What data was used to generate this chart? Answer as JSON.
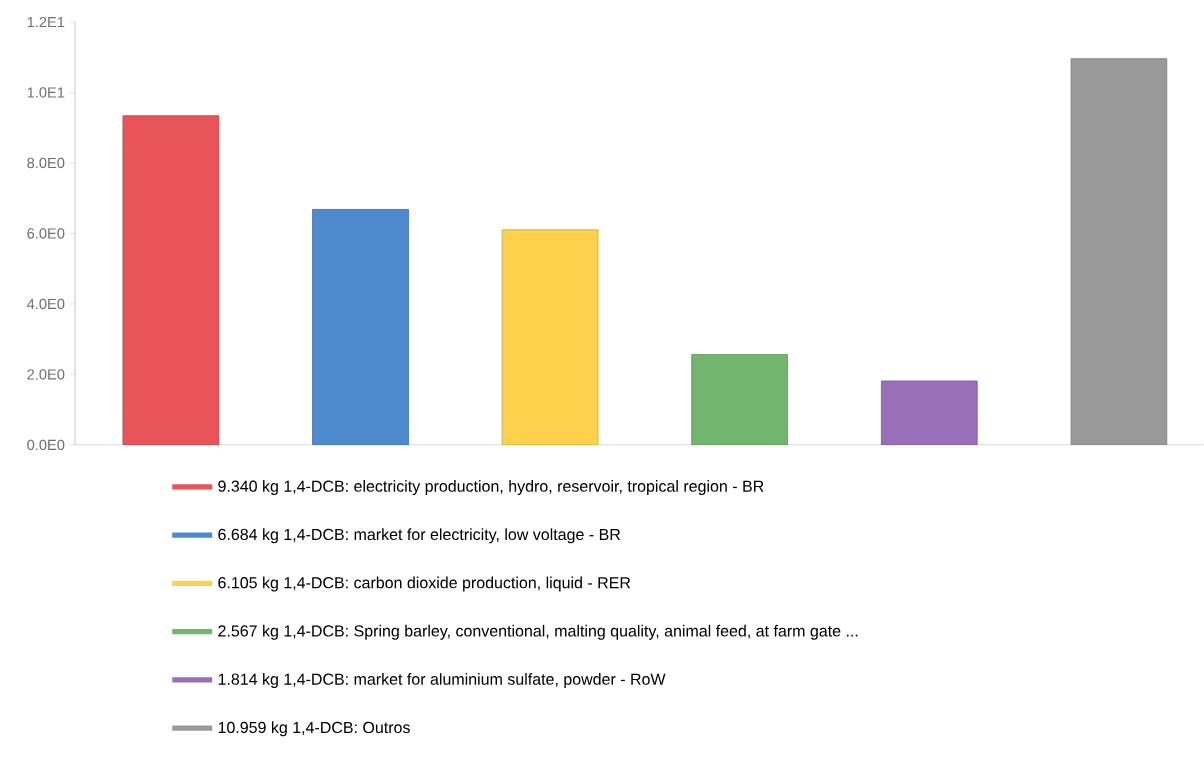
{
  "chart_data": {
    "type": "bar",
    "categories": [
      null,
      null,
      null,
      null,
      null,
      null
    ],
    "series": [
      {
        "name": "9.340 kg 1,4-DCB: electricity production, hydro, reservoir, tropical region - BR",
        "color": "#e8545a",
        "values": [
          9.34,
          null,
          null,
          null,
          null,
          null
        ]
      },
      {
        "name": "6.684 kg 1,4-DCB: market for electricity, low voltage - BR",
        "color": "#4e8ace",
        "values": [
          null,
          6.684,
          null,
          null,
          null,
          null
        ]
      },
      {
        "name": "6.105 kg 1,4-DCB: carbon dioxide production, liquid - RER",
        "color": "#fdd14c",
        "values": [
          null,
          null,
          6.105,
          null,
          null,
          null
        ]
      },
      {
        "name": "2.567 kg 1,4-DCB: Spring barley, conventional, malting quality, animal feed, at farm gate ...",
        "color": "#72b56e",
        "values": [
          null,
          null,
          null,
          2.567,
          null,
          null
        ]
      },
      {
        "name": "1.814 kg 1,4-DCB: market for aluminium sulfate, powder - RoW",
        "color": "#9a6fb9",
        "values": [
          null,
          null,
          null,
          null,
          1.814,
          null
        ]
      },
      {
        "name": "10.959 kg 1,4-DCB: Outros",
        "color": "#999999",
        "values": [
          null,
          null,
          null,
          null,
          null,
          10.959
        ]
      }
    ],
    "ylim": [
      0,
      12
    ],
    "yticks": [
      {
        "value": 0,
        "label": "0.0E0"
      },
      {
        "value": 2,
        "label": "2.0E0"
      },
      {
        "value": 4,
        "label": "4.0E0"
      },
      {
        "value": 6,
        "label": "6.0E0"
      },
      {
        "value": 8,
        "label": "8.0E0"
      },
      {
        "value": 10,
        "label": "1.0E1"
      },
      {
        "value": 12,
        "label": "1.2E1"
      }
    ],
    "grid": false,
    "legend": "bottom"
  }
}
